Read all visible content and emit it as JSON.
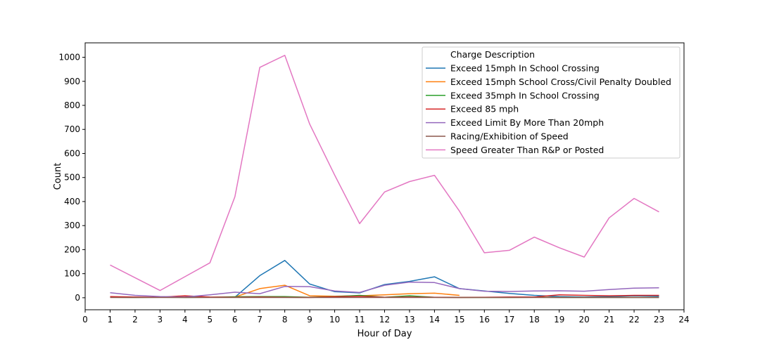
{
  "chart_data": {
    "type": "line",
    "title": "",
    "xlabel": "Hour of Day",
    "ylabel": "Count",
    "xlim": [
      0,
      24
    ],
    "ylim": [
      -50,
      1060
    ],
    "x_ticks": [
      0,
      1,
      2,
      3,
      4,
      5,
      6,
      7,
      8,
      9,
      10,
      11,
      12,
      13,
      14,
      15,
      16,
      17,
      18,
      19,
      20,
      21,
      22,
      23,
      24
    ],
    "y_ticks": [
      0,
      100,
      200,
      300,
      400,
      500,
      600,
      700,
      800,
      900,
      1000
    ],
    "grid": false,
    "legend_title": "Charge Description",
    "legend_position": "top-right",
    "series": [
      {
        "name": "Exceed 15mph In School Crossing",
        "color": "#1f77b4",
        "points": [
          [
            6,
            2
          ],
          [
            7,
            92
          ],
          [
            8,
            155
          ],
          [
            9,
            57
          ],
          [
            10,
            25
          ],
          [
            11,
            20
          ],
          [
            12,
            55
          ],
          [
            13,
            68
          ],
          [
            14,
            87
          ],
          [
            15,
            38
          ],
          [
            16,
            28
          ],
          [
            17,
            18
          ],
          [
            18,
            10
          ],
          [
            19,
            5
          ],
          [
            20,
            3
          ],
          [
            21,
            5
          ],
          [
            22,
            8
          ],
          [
            23,
            6
          ]
        ]
      },
      {
        "name": "Exceed 15mph School Cross/Civil Penalty Doubled",
        "color": "#ff7f0e",
        "points": [
          [
            6,
            3
          ],
          [
            7,
            38
          ],
          [
            8,
            52
          ],
          [
            9,
            8
          ],
          [
            10,
            6
          ],
          [
            11,
            8
          ],
          [
            12,
            12
          ],
          [
            13,
            17
          ],
          [
            14,
            19
          ],
          [
            15,
            10
          ]
        ]
      },
      {
        "name": "Exceed 35mph In School Crossing",
        "color": "#2ca02c",
        "points": [
          [
            1,
            2
          ],
          [
            2,
            1
          ],
          [
            3,
            2
          ],
          [
            4,
            1
          ],
          [
            5,
            2
          ],
          [
            6,
            4
          ],
          [
            7,
            5
          ],
          [
            8,
            5
          ],
          [
            9,
            2
          ],
          [
            10,
            5
          ],
          [
            11,
            10
          ],
          [
            12,
            2
          ],
          [
            13,
            8
          ],
          [
            14,
            2
          ],
          [
            15,
            1
          ],
          [
            16,
            1
          ],
          [
            17,
            1
          ],
          [
            18,
            2
          ],
          [
            19,
            1
          ],
          [
            20,
            1
          ],
          [
            21,
            1
          ],
          [
            22,
            1
          ],
          [
            23,
            1
          ]
        ]
      },
      {
        "name": "Exceed 85 mph",
        "color": "#d62728",
        "points": [
          [
            1,
            5
          ],
          [
            2,
            3
          ],
          [
            3,
            2
          ],
          [
            4,
            8
          ],
          [
            5,
            3
          ],
          [
            6,
            2
          ],
          [
            7,
            3
          ],
          [
            8,
            2
          ],
          [
            9,
            1
          ],
          [
            10,
            4
          ],
          [
            11,
            6
          ],
          [
            12,
            2
          ],
          [
            13,
            3
          ],
          [
            14,
            2
          ],
          [
            15,
            1
          ],
          [
            16,
            2
          ],
          [
            17,
            3
          ],
          [
            18,
            3
          ],
          [
            19,
            12
          ],
          [
            20,
            10
          ],
          [
            21,
            8
          ],
          [
            22,
            10
          ],
          [
            23,
            10
          ]
        ]
      },
      {
        "name": "Exceed Limit By More Than 20mph",
        "color": "#9467bd",
        "points": [
          [
            1,
            21
          ],
          [
            2,
            10
          ],
          [
            3,
            5
          ],
          [
            4,
            3
          ],
          [
            5,
            12
          ],
          [
            6,
            23
          ],
          [
            7,
            17
          ],
          [
            8,
            47
          ],
          [
            9,
            46
          ],
          [
            10,
            28
          ],
          [
            11,
            22
          ],
          [
            12,
            52
          ],
          [
            13,
            65
          ],
          [
            14,
            63
          ],
          [
            15,
            38
          ],
          [
            16,
            27
          ],
          [
            17,
            26
          ],
          [
            18,
            28
          ],
          [
            19,
            29
          ],
          [
            20,
            27
          ],
          [
            21,
            34
          ],
          [
            22,
            40
          ],
          [
            23,
            41
          ]
        ]
      },
      {
        "name": "Racing/Exhibition of Speed",
        "color": "#8c564b",
        "points": [
          [
            1,
            1
          ],
          [
            2,
            1
          ],
          [
            3,
            1
          ],
          [
            4,
            1
          ],
          [
            5,
            1
          ],
          [
            6,
            1
          ],
          [
            7,
            1
          ],
          [
            8,
            1
          ],
          [
            9,
            1
          ],
          [
            10,
            1
          ],
          [
            11,
            1
          ],
          [
            12,
            1
          ],
          [
            13,
            1
          ],
          [
            14,
            1
          ],
          [
            15,
            1
          ],
          [
            16,
            1
          ],
          [
            17,
            1
          ],
          [
            18,
            1
          ],
          [
            19,
            1
          ],
          [
            20,
            1
          ],
          [
            21,
            1
          ],
          [
            22,
            1
          ],
          [
            23,
            1
          ]
        ]
      },
      {
        "name": "Speed Greater Than R&P or Posted",
        "color": "#e377c2",
        "points": [
          [
            1,
            136
          ],
          [
            3,
            30
          ],
          [
            5,
            145
          ],
          [
            6,
            420
          ],
          [
            7,
            958
          ],
          [
            8,
            1008
          ],
          [
            9,
            722
          ],
          [
            10,
            510
          ],
          [
            11,
            308
          ],
          [
            12,
            440
          ],
          [
            13,
            483
          ],
          [
            14,
            509
          ],
          [
            15,
            360
          ],
          [
            16,
            187
          ],
          [
            17,
            197
          ],
          [
            18,
            252
          ],
          [
            19,
            208
          ],
          [
            20,
            169
          ],
          [
            21,
            332
          ],
          [
            22,
            413
          ],
          [
            23,
            357
          ]
        ]
      }
    ]
  }
}
